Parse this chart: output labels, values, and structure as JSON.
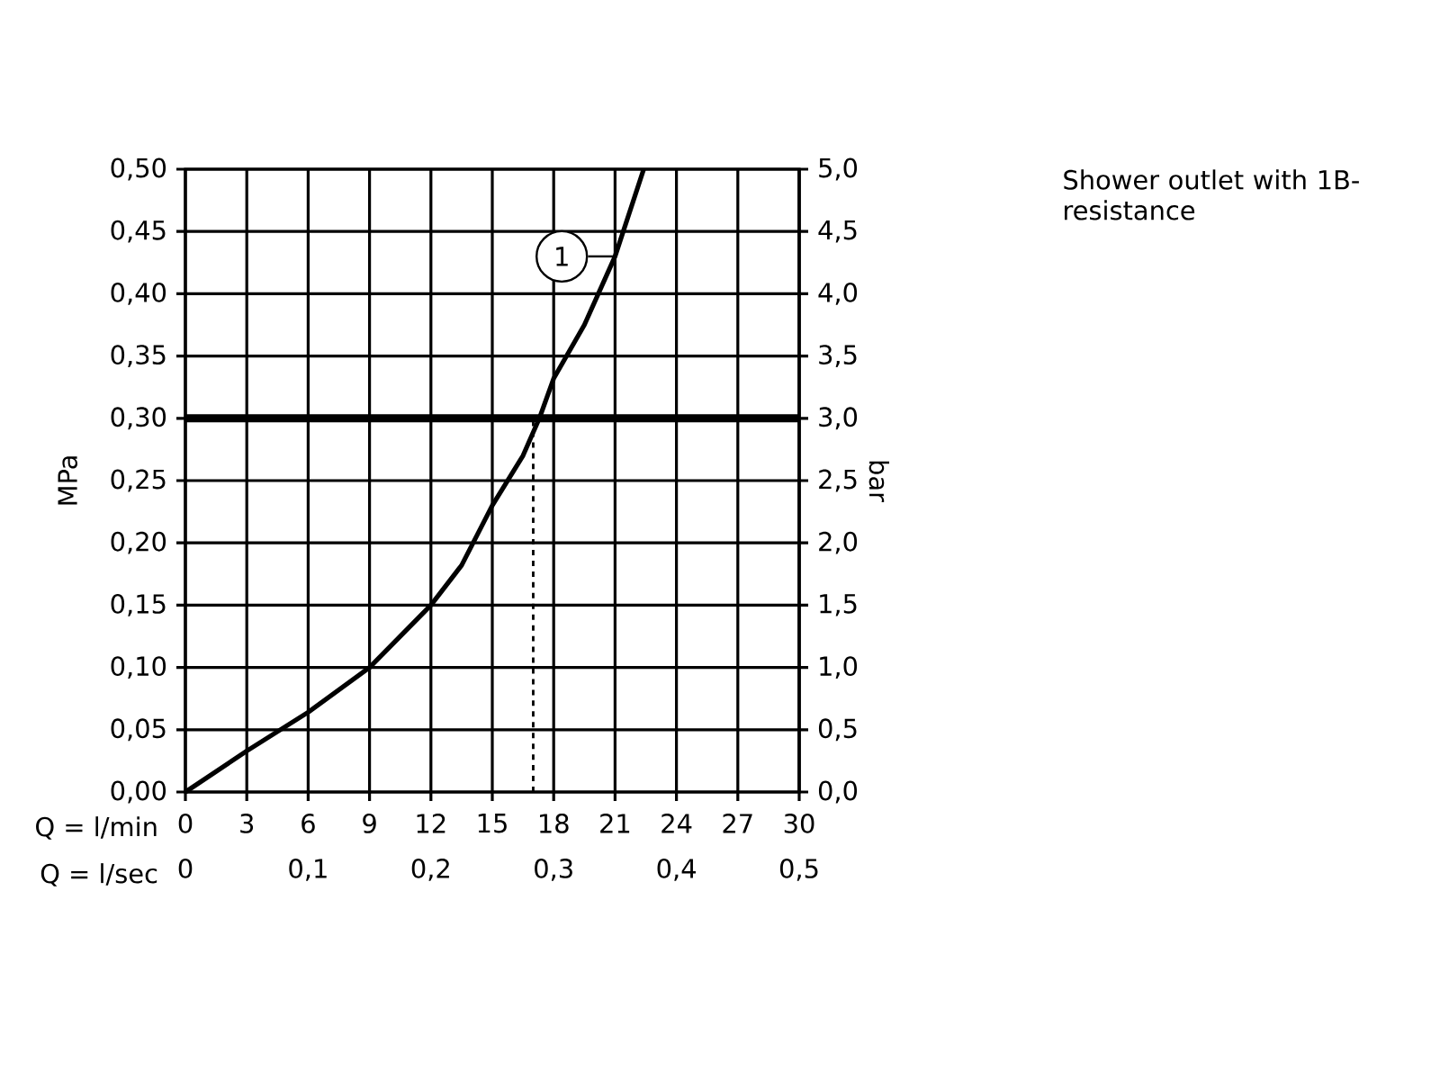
{
  "chart_data": {
    "type": "line",
    "xlabel": "Q = l/min",
    "x2label": "Q = l/sec",
    "ylabel": "MPa",
    "y2label": "bar",
    "xlim": [
      0,
      30
    ],
    "xticks": [
      0,
      3,
      6,
      9,
      12,
      15,
      18,
      21,
      24,
      27,
      30
    ],
    "x2lim": [
      0,
      0.5
    ],
    "x2ticks": [
      0,
      {
        "value": 0.1,
        "label": "0,1"
      },
      {
        "value": 0.2,
        "label": "0,2"
      },
      {
        "value": 0.3,
        "label": "0,3"
      },
      {
        "value": 0.4,
        "label": "0,4"
      },
      {
        "value": 0.5,
        "label": "0,5"
      }
    ],
    "ylim": [
      0,
      0.5
    ],
    "yticks": [
      {
        "value": 0,
        "label": "0,00"
      },
      {
        "value": 0.05,
        "label": "0,05"
      },
      {
        "value": 0.1,
        "label": "0,10"
      },
      {
        "value": 0.15,
        "label": "0,15"
      },
      {
        "value": 0.2,
        "label": "0,20"
      },
      {
        "value": 0.25,
        "label": "0,25"
      },
      {
        "value": 0.3,
        "label": "0,30"
      },
      {
        "value": 0.35,
        "label": "0,35"
      },
      {
        "value": 0.4,
        "label": "0,40"
      },
      {
        "value": 0.45,
        "label": "0,45"
      },
      {
        "value": 0.5,
        "label": "0,50"
      }
    ],
    "y2lim": [
      0,
      5
    ],
    "y2ticks": [
      {
        "value": 0,
        "label": "0,0"
      },
      {
        "value": 0.5,
        "label": "0,5"
      },
      {
        "value": 1,
        "label": "1,0"
      },
      {
        "value": 1.5,
        "label": "1,5"
      },
      {
        "value": 2,
        "label": "2,0"
      },
      {
        "value": 2.5,
        "label": "2,5"
      },
      {
        "value": 3,
        "label": "3,0"
      },
      {
        "value": 3.5,
        "label": "3,5"
      },
      {
        "value": 4,
        "label": "4,0"
      },
      {
        "value": 4.5,
        "label": "4,5"
      },
      {
        "value": 5,
        "label": "5,0"
      }
    ],
    "grid": true,
    "marker": "none",
    "series": [
      {
        "color": "#000000",
        "line_style": "solid",
        "x": [
          0,
          3,
          6,
          9,
          12,
          13.5,
          15,
          16.5,
          17.3,
          18,
          19.5,
          21,
          22.4
        ],
        "values": [
          0,
          0.033,
          0.064,
          0.1,
          0.15,
          0.182,
          0.23,
          0.27,
          0.3,
          0.332,
          0.375,
          0.43,
          0.5
        ]
      },
      {
        "color": "#000000",
        "line_style": "dashed",
        "x": [
          17,
          17
        ],
        "values": [
          0,
          0.3
        ]
      }
    ],
    "ref_lines": [
      {
        "axis": "y",
        "value": 0.3,
        "color": "#000000"
      }
    ],
    "annotations": [
      {
        "text": "1",
        "x": 21,
        "y": 0.43
      },
      "Shower outlet with 1B-resistance"
    ]
  }
}
